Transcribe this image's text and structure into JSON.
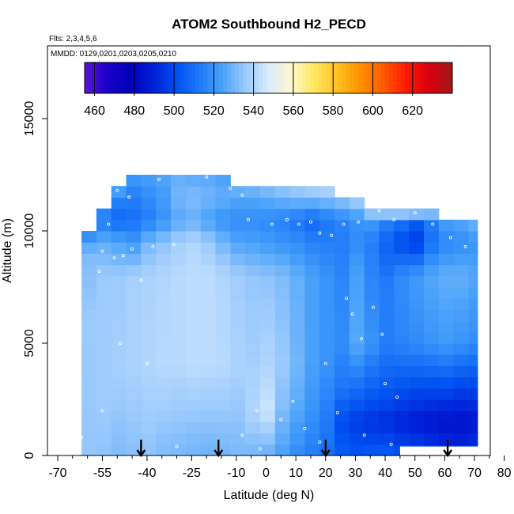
{
  "chart_data": {
    "type": "heatmap",
    "title": "ATOM2 Southbound H2_PECD",
    "flights_label": "Flts: 2,3,4,5,6",
    "dates_label": "MMDD: 0129,0201,0203,0205,0210",
    "xlabel": "Latitude (deg N)",
    "ylabel": "Altitude (m)",
    "xlim": [
      -70,
      85
    ],
    "ylim": [
      0,
      17500
    ],
    "x_ticks": [
      -70,
      -55,
      -40,
      -25,
      -10,
      0,
      10,
      20,
      30,
      40,
      50,
      60,
      70,
      80
    ],
    "x_minor_ticks": [
      -65,
      -60,
      -50,
      -45,
      -35,
      -30,
      -20,
      -15,
      -5,
      5,
      15,
      25,
      35,
      45,
      55,
      65,
      75,
      85
    ],
    "y_ticks": [
      0,
      5000,
      10000,
      15000
    ],
    "colorbar": {
      "min": 455,
      "max": 640,
      "ticks": [
        460,
        480,
        500,
        520,
        540,
        560,
        580,
        600,
        620
      ],
      "colors": [
        "#5b14d8",
        "#1a00c8",
        "#0000b8",
        "#0020d8",
        "#0050f0",
        "#1e7af8",
        "#4aa2fa",
        "#9ccafc",
        "#d8ecfe",
        "#fff8d0",
        "#ffe860",
        "#ffc020",
        "#ff9000",
        "#ff5a00",
        "#ff1800",
        "#d80010",
        "#a01818"
      ]
    },
    "columns": [
      {
        "lat": -62,
        "lat2": -57,
        "alt_max": 10000,
        "profile": [
          [
            0,
            535
          ],
          [
            6000,
            536
          ],
          [
            9000,
            532
          ],
          [
            10000,
            515
          ]
        ]
      },
      {
        "lat": -57,
        "lat2": -52,
        "alt_max": 11000,
        "profile": [
          [
            0,
            534
          ],
          [
            3000,
            537
          ],
          [
            8000,
            536
          ],
          [
            9500,
            528
          ],
          [
            10500,
            512
          ],
          [
            11000,
            520
          ]
        ]
      },
      {
        "lat": -52,
        "lat2": -47,
        "alt_max": 12000,
        "profile": [
          [
            0,
            532
          ],
          [
            4000,
            538
          ],
          [
            8000,
            536
          ],
          [
            9500,
            525
          ],
          [
            10500,
            508
          ],
          [
            11500,
            515
          ],
          [
            12000,
            530
          ]
        ]
      },
      {
        "lat": -47,
        "lat2": -42,
        "alt_max": 12500,
        "profile": [
          [
            0,
            533
          ],
          [
            4000,
            539
          ],
          [
            8000,
            538
          ],
          [
            9500,
            522
          ],
          [
            10500,
            510
          ],
          [
            11500,
            514
          ],
          [
            12500,
            522
          ]
        ]
      },
      {
        "lat": -42,
        "lat2": -37,
        "alt_max": 12500,
        "profile": [
          [
            0,
            534
          ],
          [
            4000,
            540
          ],
          [
            8000,
            539
          ],
          [
            9500,
            530
          ],
          [
            10500,
            514
          ],
          [
            11500,
            518
          ],
          [
            12500,
            524
          ]
        ]
      },
      {
        "lat": -37,
        "lat2": -32,
        "alt_max": 12500,
        "profile": [
          [
            0,
            532
          ],
          [
            4000,
            541
          ],
          [
            8000,
            540
          ],
          [
            9500,
            534
          ],
          [
            10500,
            520
          ],
          [
            11500,
            522
          ],
          [
            12500,
            526
          ]
        ]
      },
      {
        "lat": -32,
        "lat2": -27,
        "alt_max": 12500,
        "profile": [
          [
            0,
            531
          ],
          [
            4000,
            541
          ],
          [
            8000,
            541
          ],
          [
            9500,
            538
          ],
          [
            10500,
            526
          ],
          [
            11500,
            530
          ],
          [
            12500,
            528
          ]
        ]
      },
      {
        "lat": -27,
        "lat2": -22,
        "alt_max": 12500,
        "profile": [
          [
            0,
            530
          ],
          [
            4000,
            542
          ],
          [
            8000,
            542
          ],
          [
            9500,
            540
          ],
          [
            10500,
            528
          ],
          [
            11500,
            532
          ],
          [
            12500,
            526
          ]
        ]
      },
      {
        "lat": -22,
        "lat2": -17,
        "alt_max": 12500,
        "profile": [
          [
            0,
            529
          ],
          [
            4000,
            542
          ],
          [
            8000,
            542
          ],
          [
            9500,
            536
          ],
          [
            10500,
            524
          ],
          [
            11500,
            530
          ],
          [
            12500,
            526
          ]
        ]
      },
      {
        "lat": -17,
        "lat2": -12,
        "alt_max": 12500,
        "profile": [
          [
            0,
            530
          ],
          [
            4000,
            541
          ],
          [
            8000,
            540
          ],
          [
            9500,
            530
          ],
          [
            10500,
            520
          ],
          [
            11500,
            528
          ],
          [
            12500,
            524
          ]
        ]
      },
      {
        "lat": -12,
        "lat2": -7,
        "alt_max": 12000,
        "profile": [
          [
            0,
            531
          ],
          [
            4000,
            539
          ],
          [
            8000,
            537
          ],
          [
            9500,
            525
          ],
          [
            10500,
            518
          ],
          [
            11500,
            526
          ],
          [
            12000,
            530
          ]
        ]
      },
      {
        "lat": -7,
        "lat2": -2,
        "alt_max": 12000,
        "profile": [
          [
            0,
            530
          ],
          [
            2000,
            540
          ],
          [
            5000,
            537
          ],
          [
            8000,
            535
          ],
          [
            9500,
            524
          ],
          [
            10500,
            518
          ],
          [
            11500,
            526
          ],
          [
            12000,
            532
          ]
        ]
      },
      {
        "lat": -2,
        "lat2": 3,
        "alt_max": 12000,
        "profile": [
          [
            0,
            528
          ],
          [
            2000,
            545
          ],
          [
            4000,
            540
          ],
          [
            8000,
            534
          ],
          [
            9500,
            522
          ],
          [
            10500,
            517
          ],
          [
            11500,
            528
          ],
          [
            12000,
            534
          ]
        ]
      },
      {
        "lat": 3,
        "lat2": 8,
        "alt_max": 12000,
        "profile": [
          [
            0,
            524
          ],
          [
            2000,
            532
          ],
          [
            4000,
            536
          ],
          [
            8000,
            532
          ],
          [
            9500,
            520
          ],
          [
            10500,
            515
          ],
          [
            11500,
            530
          ],
          [
            12000,
            536
          ]
        ]
      },
      {
        "lat": 8,
        "lat2": 13,
        "alt_max": 12000,
        "profile": [
          [
            0,
            518
          ],
          [
            2000,
            526
          ],
          [
            4000,
            530
          ],
          [
            8000,
            528
          ],
          [
            9500,
            518
          ],
          [
            10500,
            512
          ],
          [
            11500,
            532
          ],
          [
            12000,
            538
          ]
        ]
      },
      {
        "lat": 13,
        "lat2": 18,
        "alt_max": 12000,
        "profile": [
          [
            0,
            514
          ],
          [
            2000,
            520
          ],
          [
            4000,
            524
          ],
          [
            8000,
            524
          ],
          [
            9500,
            515
          ],
          [
            10500,
            508
          ],
          [
            11500,
            533
          ],
          [
            12000,
            540
          ]
        ]
      },
      {
        "lat": 18,
        "lat2": 23,
        "alt_max": 12000,
        "profile": [
          [
            0,
            510
          ],
          [
            2000,
            514
          ],
          [
            4000,
            520
          ],
          [
            8000,
            520
          ],
          [
            9500,
            514
          ],
          [
            10500,
            512
          ],
          [
            11500,
            534
          ],
          [
            12000,
            542
          ]
        ]
      },
      {
        "lat": 23,
        "lat2": 28,
        "alt_max": 11500,
        "profile": [
          [
            0,
            505
          ],
          [
            1500,
            500
          ],
          [
            3000,
            512
          ],
          [
            5000,
            518
          ],
          [
            8000,
            516
          ],
          [
            9500,
            514
          ],
          [
            10500,
            516
          ],
          [
            11500,
            536
          ]
        ]
      },
      {
        "lat": 28,
        "lat2": 33,
        "alt_max": 11500,
        "profile": [
          [
            0,
            503
          ],
          [
            1500,
            496
          ],
          [
            3000,
            510
          ],
          [
            5000,
            526
          ],
          [
            8000,
            524
          ],
          [
            9500,
            518
          ],
          [
            10500,
            520
          ],
          [
            11500,
            540
          ]
        ]
      },
      {
        "lat": 33,
        "lat2": 38,
        "alt_max": 11000,
        "profile": [
          [
            0,
            504
          ],
          [
            1500,
            494
          ],
          [
            3000,
            506
          ],
          [
            5000,
            520
          ],
          [
            8000,
            516
          ],
          [
            9500,
            514
          ],
          [
            10500,
            522
          ],
          [
            11000,
            546
          ]
        ]
      },
      {
        "lat": 38,
        "lat2": 43,
        "alt_max": 11000,
        "profile": [
          [
            0,
            505
          ],
          [
            1500,
            492
          ],
          [
            3000,
            504
          ],
          [
            5000,
            514
          ],
          [
            7500,
            514
          ],
          [
            9500,
            506
          ],
          [
            10500,
            516
          ],
          [
            11000,
            552
          ]
        ]
      },
      {
        "lat": 43,
        "lat2": 48,
        "alt_max": 11000,
        "profile": [
          [
            0,
            502
          ],
          [
            1500,
            490
          ],
          [
            3000,
            502
          ],
          [
            5000,
            516
          ],
          [
            8000,
            518
          ],
          [
            9500,
            500
          ],
          [
            10500,
            512
          ],
          [
            11000,
            556
          ]
        ]
      },
      {
        "lat": 48,
        "lat2": 53,
        "alt_max": 11000,
        "profile": [
          [
            0,
            500
          ],
          [
            1500,
            488
          ],
          [
            3000,
            500
          ],
          [
            5000,
            518
          ],
          [
            8000,
            522
          ],
          [
            9500,
            496
          ],
          [
            10500,
            506
          ],
          [
            11000,
            558
          ]
        ]
      },
      {
        "lat": 53,
        "lat2": 58,
        "alt_max": 11000,
        "profile": [
          [
            0,
            498
          ],
          [
            1500,
            486
          ],
          [
            3000,
            500
          ],
          [
            5000,
            520
          ],
          [
            8000,
            526
          ],
          [
            9500,
            510
          ],
          [
            10500,
            514
          ],
          [
            11000,
            548
          ]
        ]
      },
      {
        "lat": 58,
        "lat2": 63,
        "alt_max": 10500,
        "profile": [
          [
            0,
            496
          ],
          [
            1500,
            484
          ],
          [
            3000,
            500
          ],
          [
            5000,
            522
          ],
          [
            8000,
            528
          ],
          [
            9500,
            516
          ],
          [
            10500,
            524
          ]
        ]
      },
      {
        "lat": 63,
        "lat2": 68,
        "alt_max": 10500,
        "profile": [
          [
            0,
            494
          ],
          [
            1500,
            484
          ],
          [
            3000,
            498
          ],
          [
            5000,
            520
          ],
          [
            8000,
            528
          ],
          [
            9500,
            518
          ],
          [
            10500,
            526
          ]
        ]
      },
      {
        "lat": 68,
        "lat2": 71,
        "alt_max": 10500,
        "profile": [
          [
            0,
            496
          ],
          [
            1500,
            486
          ],
          [
            3000,
            498
          ],
          [
            5000,
            518
          ],
          [
            8000,
            526
          ],
          [
            9500,
            520
          ],
          [
            10500,
            530
          ]
        ]
      }
    ],
    "blanks": [
      {
        "lat": 45,
        "lat2": 72,
        "alt_min": 0,
        "alt_max": 400
      }
    ],
    "arrows_lat": [
      -42,
      -16,
      20,
      61
    ],
    "sample_points": [
      [
        -56,
        8200
      ],
      [
        -55,
        9100
      ],
      [
        -51,
        8800
      ],
      [
        -48,
        8900
      ],
      [
        -45,
        9200
      ],
      [
        -42,
        7800
      ],
      [
        -38,
        9300
      ],
      [
        -31,
        9400
      ],
      [
        -53,
        10300
      ],
      [
        -50,
        11800
      ],
      [
        -46,
        11500
      ],
      [
        -36,
        12300
      ],
      [
        -20,
        12400
      ],
      [
        -12,
        11900
      ],
      [
        -8,
        11600
      ],
      [
        -6,
        10500
      ],
      [
        2,
        10300
      ],
      [
        7,
        10500
      ],
      [
        11,
        10300
      ],
      [
        15,
        10400
      ],
      [
        18,
        9900
      ],
      [
        22,
        9800
      ],
      [
        26,
        10300
      ],
      [
        31,
        10400
      ],
      [
        38,
        10900
      ],
      [
        43,
        10500
      ],
      [
        50,
        10800
      ],
      [
        56,
        10300
      ],
      [
        62,
        9700
      ],
      [
        67,
        9300
      ],
      [
        -49,
        5000
      ],
      [
        -40,
        4100
      ],
      [
        -3,
        2000
      ],
      [
        5,
        1600
      ],
      [
        9,
        2400
      ],
      [
        13,
        1200
      ],
      [
        20,
        4100
      ],
      [
        24,
        1900
      ],
      [
        33,
        900
      ],
      [
        39,
        5400
      ],
      [
        44,
        2600
      ],
      [
        -55,
        2000
      ],
      [
        -62,
        800
      ],
      [
        -30,
        400
      ],
      [
        -8,
        900
      ],
      [
        -2,
        300
      ],
      [
        18,
        600
      ],
      [
        27,
        7000
      ],
      [
        36,
        6600
      ],
      [
        32,
        5200
      ],
      [
        29,
        6300
      ],
      [
        40,
        3200
      ],
      [
        42,
        500
      ]
    ]
  }
}
